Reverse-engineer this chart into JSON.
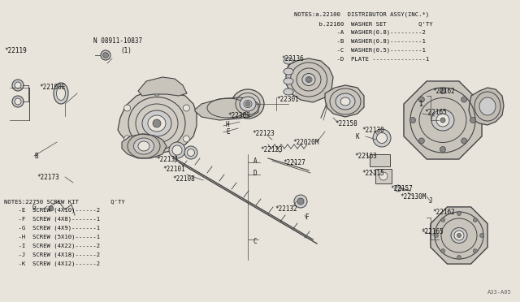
{
  "background_color": "#e8e4dc",
  "line_color": "#444444",
  "text_color": "#111111",
  "fig_width": 6.4,
  "fig_height": 3.72,
  "dpi": 100,
  "notes_top_right": [
    "NOTES:a.22100  DISTRIBUTOR ASSY(INC.*)",
    "       b.22160  WASHER SET         Q'TY",
    "            -A  WASHER(0.8)---------2",
    "            -B  WASHER(0.8)---------1",
    "            -C  WASHER(0.5)---------1",
    "            -D  PLATE ---------------1"
  ],
  "notes_bottom_left": [
    "NOTES:22750 SCREW KIT         Q'TY",
    "    -E  SCREW (4X10)------2",
    "    -F  SCREW (4X8)-------1",
    "    -G  SCREW (4X9)-------1",
    "    -H  SCREW (5X10)------1",
    "    -I  SCREW (4X22)------2",
    "    -J  SCREW (4X18)------2",
    "    -K  SCREW (4X12)------2"
  ],
  "diagram_ref": "A33-A05"
}
